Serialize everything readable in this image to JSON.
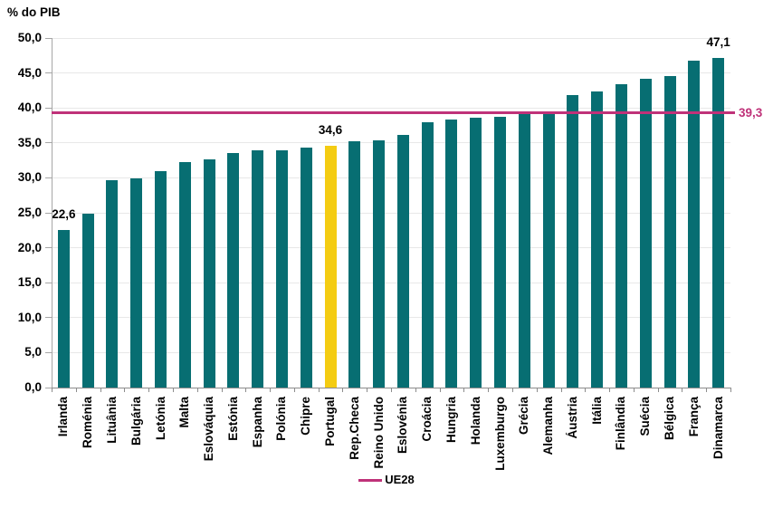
{
  "chart_data": {
    "type": "bar",
    "title": "% do PIB",
    "ylabel": "% do PIB",
    "xlabel": "",
    "categories": [
      "Irlanda",
      "Roménia",
      "Lituânia",
      "Bulgária",
      "Letónia",
      "Malta",
      "Eslováquia",
      "Estónia",
      "Espanha",
      "Polónia",
      "Chipre",
      "Portugal",
      "Rep.Checa",
      "Reino Unido",
      "Eslovénia",
      "Croácia",
      "Hungria",
      "Holanda",
      "Luxemburgo",
      "Grécia",
      "Alemanha",
      "Áustria",
      "Itália",
      "Finlândia",
      "Suécia",
      "Bélgica",
      "França",
      "Dinamarca"
    ],
    "values": [
      22.6,
      24.9,
      29.6,
      29.9,
      31.0,
      32.3,
      32.6,
      33.5,
      33.9,
      34.0,
      34.3,
      34.6,
      35.2,
      35.3,
      36.1,
      38.0,
      38.4,
      38.6,
      38.7,
      39.2,
      39.3,
      41.8,
      42.3,
      43.4,
      44.2,
      44.5,
      46.7,
      47.1
    ],
    "highlight_category": "Portugal",
    "bar_labels": [
      {
        "category": "Irlanda",
        "text": "22,6"
      },
      {
        "category": "Portugal",
        "text": "34,6"
      },
      {
        "category": "Dinamarca",
        "text": "47,1"
      }
    ],
    "reference_line": {
      "value": 39.3,
      "label": "39,3",
      "legend_label": "UE28"
    },
    "ylim": [
      0,
      50
    ],
    "ytick_step": 5,
    "ytick_labels": [
      "0,0",
      "5,0",
      "10,0",
      "15,0",
      "20,0",
      "25,0",
      "30,0",
      "35,0",
      "40,0",
      "45,0",
      "50,0"
    ],
    "grid": true,
    "legend_position": "bottom-center",
    "colors": {
      "bar": "#076E72",
      "highlight": "#F4CC12",
      "reference": "#BF3279",
      "gridline": "#E8E8E8",
      "axis": "#A6A6A6",
      "text": "#000000"
    }
  }
}
